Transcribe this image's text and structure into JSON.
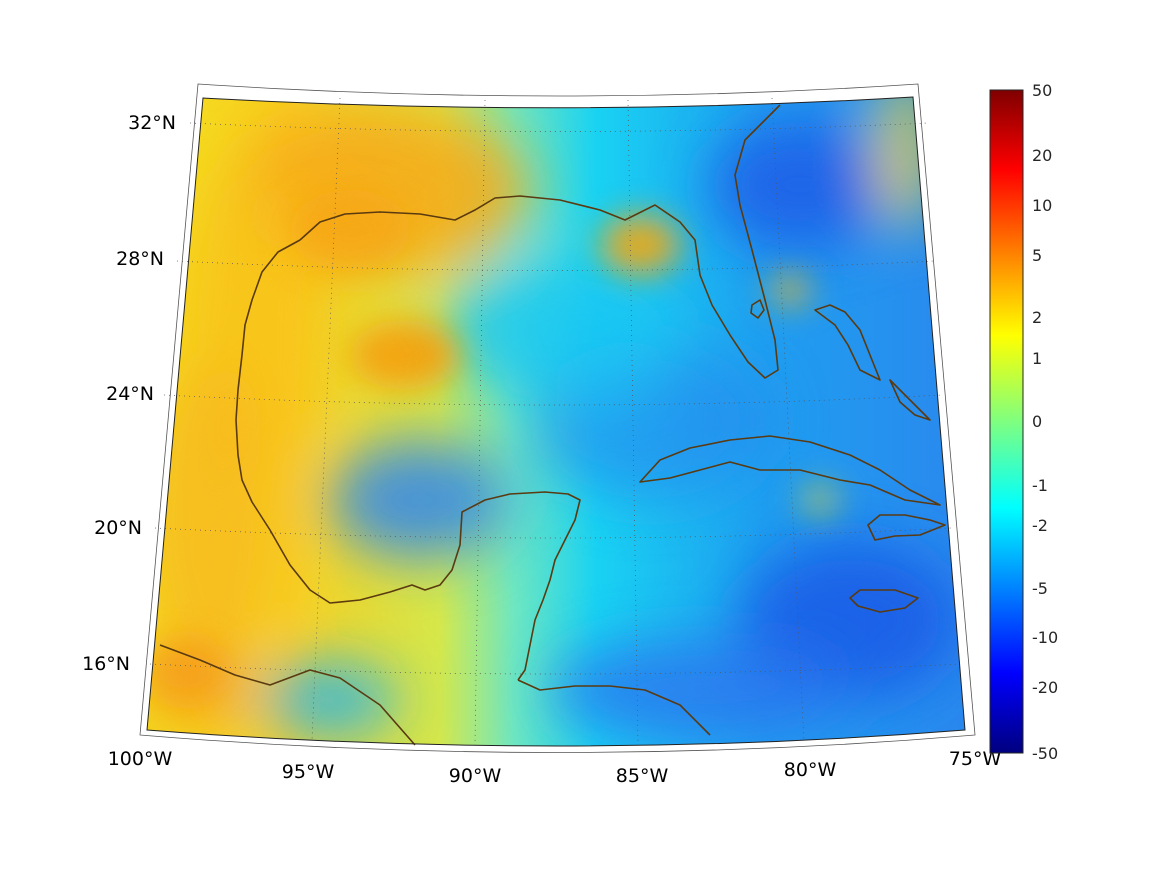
{
  "map": {
    "projection": "lambert-conic",
    "lon_range": [
      -100,
      -75
    ],
    "lat_range": [
      14,
      32.5
    ],
    "grid": true,
    "longitude_labels": [
      "100°W",
      "95°W",
      "90°W",
      "85°W",
      "80°W",
      "75°W"
    ],
    "latitude_labels": [
      "16°N",
      "20°N",
      "24°N",
      "28°N",
      "32°N"
    ],
    "coastline_color": "#5a3a10"
  },
  "colorbar": {
    "colormap": "jet",
    "tick_labels": [
      "50",
      "20",
      "10",
      "5",
      "2",
      "1",
      "0",
      "-1",
      "-2",
      "-5",
      "-10",
      "-20",
      "-50"
    ],
    "colors": [
      "#7f0000",
      "#ff0000",
      "#ffff00",
      "#00ffff",
      "#0000ff",
      "#00007f"
    ]
  },
  "field_regions": [
    {
      "region": "Texas / Louisiana coast",
      "level": "2 to 5"
    },
    {
      "region": "Western Gulf eddy",
      "level": "2 to 5"
    },
    {
      "region": "Northeastern Gulf off Florida",
      "level": "2 to 5"
    },
    {
      "region": "Western Mexico coast",
      "level": "1 to 2"
    },
    {
      "region": "Central Gulf of Mexico",
      "level": "-1 to -5"
    },
    {
      "region": "Bay of Campeche",
      "level": "-2 to -5"
    },
    {
      "region": "Atlantic east of Georgia",
      "level": "-5 to -10"
    },
    {
      "region": "Caribbean south of Cuba",
      "level": "-5 to -10"
    }
  ]
}
